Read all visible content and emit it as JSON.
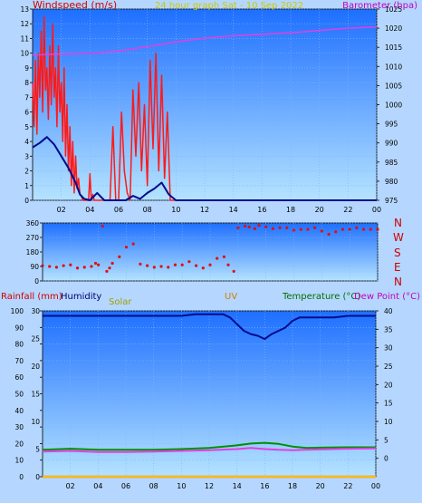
{
  "header": {
    "left_title": "Windspeed (m/s)",
    "center_title": "24 hour graph Sat - 10 Sep 2022",
    "right_title": "Barometer (hpa)"
  },
  "wind_dir_labels": [
    "N",
    "W",
    "S",
    "E",
    "N"
  ],
  "bottom_labels": {
    "rain": "Rainfall (mm)",
    "humidity": "Humidity",
    "solar": "Solar",
    "uv": "UV",
    "temperature": "Temperature (°C)",
    "dewpoint": "Dew Point (°C)"
  },
  "colors": {
    "plot_top": "#1e6fff",
    "plot_bottom": "#b5e3ff",
    "wind": "#ff1a1a",
    "gust_avg": "#000c8c",
    "barometer": "#e040e0",
    "direction": "#e01010",
    "humidity": "#000c8c",
    "temperature": "#008f00",
    "dewpoint": "#e040e0",
    "rain": "#ff8000",
    "solar": "#ffd000",
    "label_red": "#d00000",
    "label_green": "#007000",
    "label_purple": "#c000c0",
    "label_navy": "#000070",
    "label_olive": "#a0a000"
  },
  "chart_data": [
    {
      "type": "line",
      "panel": "wind-barometer",
      "xticks": [
        "02",
        "04",
        "06",
        "08",
        "10",
        "12",
        "14",
        "16",
        "18",
        "20",
        "22",
        "00"
      ],
      "left_axis": {
        "label": "Windspeed (m/s)",
        "ticks": [
          0,
          1,
          2,
          3,
          4,
          5,
          6,
          7,
          8,
          9,
          10,
          11,
          12,
          13
        ],
        "ylim": [
          0,
          13
        ]
      },
      "right_axis": {
        "label": "Barometer (hpa)",
        "ticks": [
          975,
          980,
          985,
          990,
          995,
          1000,
          1005,
          1010,
          1015,
          1020,
          1025
        ],
        "ylim": [
          975,
          1025
        ]
      },
      "series": [
        {
          "name": "Windspeed (m/s)",
          "axis": "left",
          "x": [
            0.0,
            0.1,
            0.2,
            0.3,
            0.4,
            0.5,
            0.6,
            0.7,
            0.8,
            0.9,
            1.0,
            1.1,
            1.2,
            1.3,
            1.4,
            1.5,
            1.6,
            1.7,
            1.8,
            1.9,
            2.0,
            2.1,
            2.2,
            2.3,
            2.4,
            2.5,
            2.6,
            2.7,
            2.8,
            2.9,
            3.0,
            3.1,
            3.2,
            3.3,
            3.4,
            3.5,
            3.6,
            3.7,
            3.8,
            3.9,
            4.0,
            4.1,
            4.2,
            4.3,
            4.4,
            4.5,
            4.6,
            4.7,
            4.8,
            4.9,
            5.0,
            5.2,
            5.4,
            5.6,
            5.8,
            6.0,
            6.2,
            6.4,
            6.6,
            6.8,
            7.0,
            7.2,
            7.4,
            7.6,
            7.8,
            8.0,
            8.2,
            8.4,
            8.6,
            8.8,
            9.0,
            9.2,
            9.4,
            9.6,
            9.8,
            10.0,
            12.0,
            14.0,
            16.0,
            18.0,
            20.0,
            22.0,
            24.0
          ],
          "y": [
            8.0,
            5.0,
            9.5,
            4.5,
            10.0,
            7.0,
            11.5,
            6.0,
            12.5,
            7.5,
            9.0,
            5.5,
            10.5,
            6.5,
            12.0,
            7.0,
            9.0,
            5.0,
            10.5,
            6.0,
            8.0,
            4.0,
            9.0,
            3.0,
            6.5,
            2.0,
            5.0,
            1.0,
            4.0,
            0.5,
            3.0,
            0.8,
            1.5,
            0.4,
            0.3,
            0.0,
            0.0,
            0.0,
            0.0,
            0.0,
            1.8,
            0.0,
            0.4,
            0.0,
            0.0,
            0.0,
            0.0,
            0.0,
            0.0,
            0.0,
            0.0,
            0.0,
            0.0,
            5.0,
            0.0,
            0.0,
            6.0,
            2.0,
            0.5,
            0.0,
            7.5,
            3.0,
            8.0,
            2.0,
            6.5,
            1.0,
            9.5,
            3.5,
            10.0,
            2.0,
            8.5,
            1.5,
            6.0,
            0.0,
            0.0,
            0.0,
            0.0,
            0.0,
            0.0,
            0.0,
            0.0,
            0.0,
            0.0
          ]
        },
        {
          "name": "Average windspeed",
          "axis": "left",
          "x": [
            0.0,
            0.5,
            1.0,
            1.5,
            2.0,
            2.5,
            3.0,
            3.3,
            3.6,
            4.0,
            4.5,
            5.0,
            5.5,
            6.0,
            6.5,
            7.0,
            7.5,
            8.0,
            8.5,
            9.0,
            9.5,
            10.0,
            12.0,
            14.0,
            16.0,
            18.0,
            20.0,
            22.0,
            24.0
          ],
          "y": [
            3.6,
            3.9,
            4.3,
            3.8,
            3.0,
            2.2,
            1.2,
            0.4,
            0.1,
            0.0,
            0.5,
            0.0,
            0.0,
            0.0,
            0.0,
            0.3,
            0.1,
            0.5,
            0.8,
            1.2,
            0.4,
            0.0,
            0.0,
            0.0,
            0.0,
            0.0,
            0.0,
            0.0,
            0.0
          ]
        },
        {
          "name": "Barometer (hpa)",
          "axis": "right",
          "x": [
            0,
            2,
            4,
            6,
            8,
            10,
            12,
            14,
            16,
            18,
            20,
            22,
            24
          ],
          "y": [
            1013.0,
            1013.2,
            1013.4,
            1014.0,
            1015.2,
            1016.4,
            1017.4,
            1018.0,
            1018.4,
            1018.8,
            1019.4,
            1020.0,
            1020.3
          ]
        }
      ]
    },
    {
      "type": "scatter",
      "panel": "wind-direction",
      "xticks": [
        "02",
        "04",
        "06",
        "08",
        "10",
        "12",
        "14",
        "16",
        "18",
        "20",
        "22",
        "00"
      ],
      "left_axis": {
        "ticks": [
          0,
          90,
          180,
          270,
          360
        ],
        "ylim": [
          0,
          360
        ]
      },
      "right_labels": [
        "N",
        "W",
        "S",
        "E",
        "N"
      ],
      "series": [
        {
          "name": "Wind direction",
          "axis": "left",
          "x": [
            0.0,
            0.5,
            1.0,
            1.5,
            2.0,
            2.5,
            3.0,
            3.5,
            3.8,
            4.0,
            4.3,
            4.6,
            4.8,
            5.0,
            5.5,
            6.0,
            6.5,
            7.0,
            7.5,
            8.0,
            8.5,
            9.0,
            9.5,
            10.0,
            10.5,
            11.0,
            11.5,
            12.0,
            12.5,
            13.0,
            13.3,
            13.7,
            14.0,
            14.5,
            14.8,
            15.2,
            15.5,
            16.0,
            16.5,
            17.0,
            17.5,
            18.0,
            18.5,
            19.0,
            19.5,
            20.0,
            20.5,
            21.0,
            21.5,
            22.0,
            22.5,
            23.0,
            23.5,
            24.0
          ],
          "y": [
            95,
            90,
            85,
            95,
            100,
            80,
            85,
            90,
            110,
            100,
            340,
            60,
            80,
            110,
            150,
            210,
            230,
            105,
            95,
            85,
            90,
            85,
            100,
            100,
            120,
            95,
            80,
            100,
            140,
            150,
            100,
            60,
            330,
            340,
            335,
            325,
            345,
            335,
            325,
            330,
            330,
            315,
            320,
            320,
            330,
            310,
            290,
            305,
            320,
            320,
            330,
            320,
            320,
            320
          ]
        }
      ]
    },
    {
      "type": "line",
      "panel": "humidity-temperature",
      "xticks": [
        "02",
        "04",
        "06",
        "08",
        "10",
        "12",
        "14",
        "16",
        "18",
        "20",
        "22",
        "00"
      ],
      "left_axis": {
        "label": "Humidity",
        "ticks": [
          0,
          10,
          20,
          30,
          40,
          50,
          60,
          70,
          80,
          90,
          100
        ],
        "ylim": [
          0,
          100
        ]
      },
      "rain_axis": {
        "label": "Rainfall (mm)",
        "ticks": [
          0,
          5,
          10,
          15,
          20,
          25,
          30
        ],
        "ylim": [
          0,
          30
        ]
      },
      "right_axis": {
        "label": "Temperature (°C)",
        "ticks": [
          0,
          5,
          10,
          15,
          20,
          25,
          30,
          35,
          40
        ],
        "ylim": [
          -5,
          40
        ]
      },
      "series": [
        {
          "name": "Humidity",
          "axis": "left",
          "x": [
            0,
            1,
            2,
            3,
            4,
            5,
            6,
            7,
            8,
            9,
            10,
            11,
            12,
            13,
            13.5,
            14,
            14.5,
            15,
            15.5,
            16,
            16.5,
            17,
            17.5,
            18,
            18.5,
            19,
            20,
            21,
            22,
            23,
            24
          ],
          "y": [
            97,
            97,
            97,
            97,
            97,
            97,
            97,
            97,
            97,
            97,
            97,
            98,
            98,
            98,
            96,
            92,
            88,
            86,
            85,
            83,
            86,
            88,
            90,
            94,
            96,
            96,
            96,
            96,
            97,
            97,
            97
          ],
          "label_y_shown_left": []
        },
        {
          "name": "Temperature (°C)",
          "axis": "right",
          "x": [
            0,
            2,
            4,
            6,
            8,
            10,
            12,
            14,
            15,
            16,
            17,
            18,
            19,
            20,
            22,
            24
          ],
          "y": [
            2.3,
            2.6,
            2.3,
            2.3,
            2.3,
            2.5,
            2.8,
            3.5,
            4.0,
            4.2,
            3.9,
            3.2,
            2.8,
            2.9,
            3.0,
            3.0
          ]
        },
        {
          "name": "Dew Point (°C)",
          "axis": "right",
          "x": [
            0,
            2,
            4,
            6,
            8,
            10,
            12,
            14,
            15,
            16,
            17,
            18,
            19,
            20,
            22,
            24
          ],
          "y": [
            1.8,
            2.0,
            1.7,
            1.7,
            1.8,
            2.0,
            2.2,
            2.5,
            2.8,
            2.5,
            2.3,
            2.2,
            2.3,
            2.4,
            2.6,
            2.7
          ]
        },
        {
          "name": "Rainfall (mm)",
          "axis": "rain",
          "x": [
            0,
            24
          ],
          "y": [
            0,
            0
          ]
        },
        {
          "name": "Solar",
          "axis": "left",
          "x": [
            0,
            24
          ],
          "y": [
            0,
            0
          ]
        }
      ]
    }
  ]
}
